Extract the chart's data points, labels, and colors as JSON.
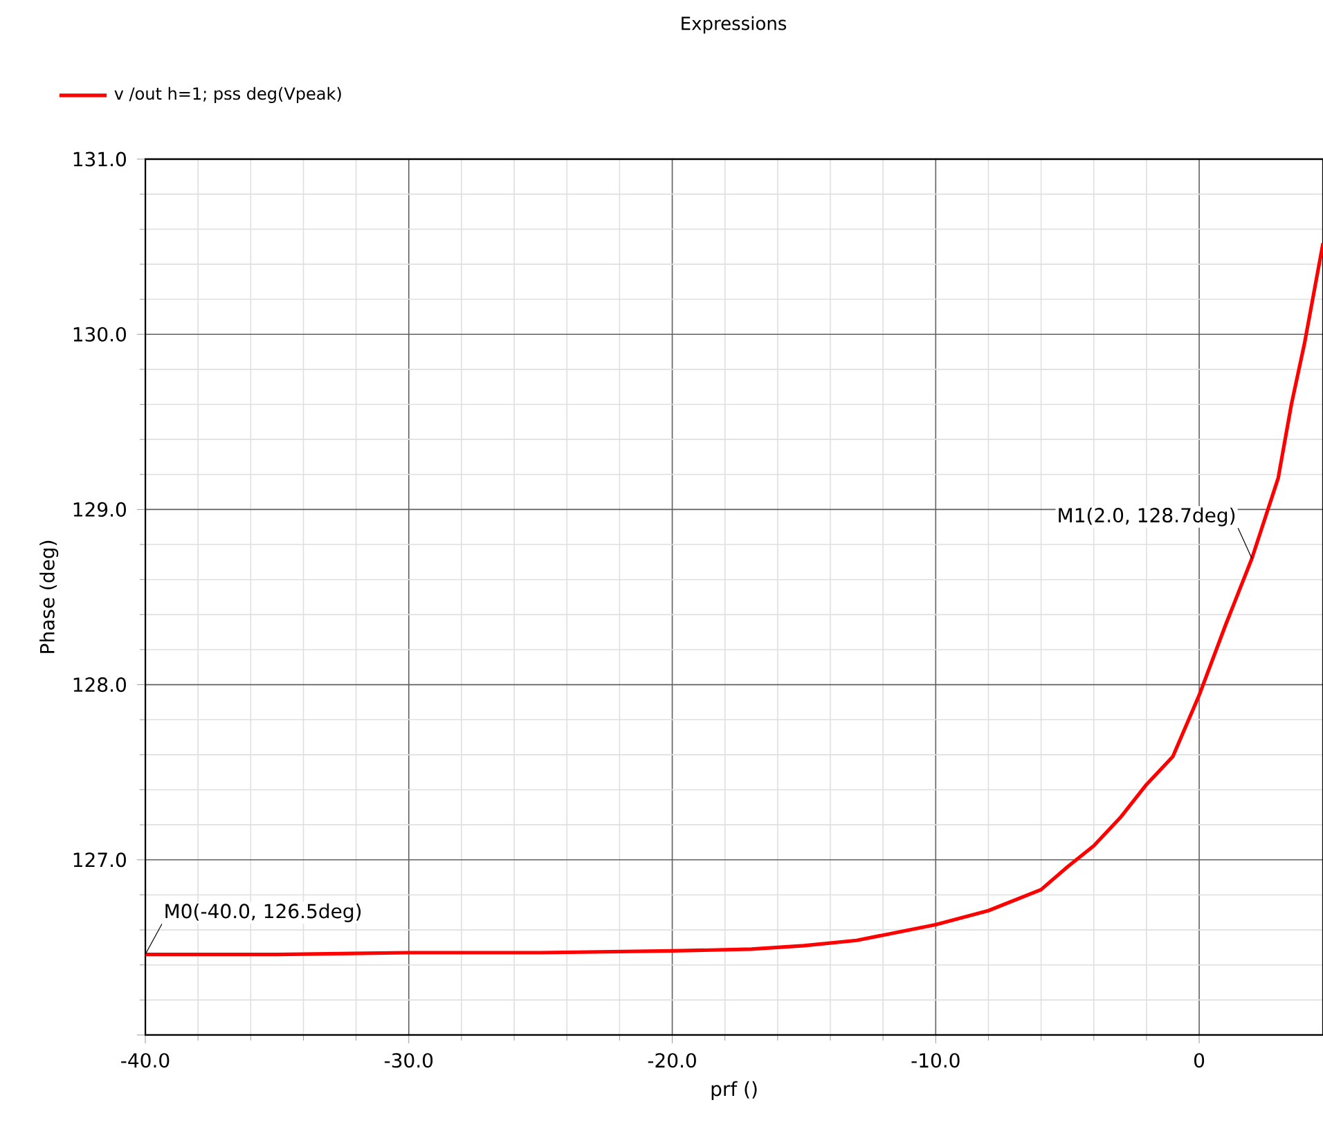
{
  "chart_data": {
    "type": "line",
    "title": "Expressions",
    "xlabel": "prf ()",
    "ylabel": "Phase (deg)",
    "x": [
      -40,
      -35,
      -30,
      -25,
      -20,
      -17,
      -15,
      -13,
      -12,
      -10,
      -8,
      -6,
      -5,
      -4,
      -3,
      -2,
      -1,
      0,
      1,
      2,
      3,
      3.5,
      4,
      4.7
    ],
    "series": [
      {
        "name": "v /out h=1; pss deg(Vpeak)",
        "color": "#ff0000",
        "values": [
          126.46,
          126.46,
          126.47,
          126.47,
          126.48,
          126.49,
          126.51,
          126.54,
          126.57,
          126.63,
          126.71,
          126.83,
          126.96,
          127.08,
          127.24,
          127.43,
          127.59,
          127.94,
          128.34,
          128.72,
          129.18,
          129.6,
          129.95,
          130.52
        ]
      }
    ],
    "xlim": [
      -40,
      4.7
    ],
    "ylim": [
      126,
      131
    ],
    "xticks": [
      {
        "value": -40,
        "label": "-40.0"
      },
      {
        "value": -30,
        "label": "-30.0"
      },
      {
        "value": -20,
        "label": "-20.0"
      },
      {
        "value": -10,
        "label": "-10.0"
      },
      0
    ],
    "yticks": [
      {
        "value": 126,
        "label": null
      },
      {
        "value": 127,
        "label": "127.0"
      },
      {
        "value": 128,
        "label": "128.0"
      },
      {
        "value": 129,
        "label": "129.0"
      },
      {
        "value": 130,
        "label": "130.0"
      },
      {
        "value": 131,
        "label": "131.0"
      }
    ],
    "annotations": [
      {
        "text": "M0(-40.0, 126.5deg)",
        "x": -40,
        "y": 126.46
      },
      {
        "text": "M1(2.0, 128.7deg)",
        "x": 2.0,
        "y": 128.72
      }
    ],
    "grid": true,
    "legend": "top left",
    "marker": "none",
    "line_style": "solid"
  }
}
